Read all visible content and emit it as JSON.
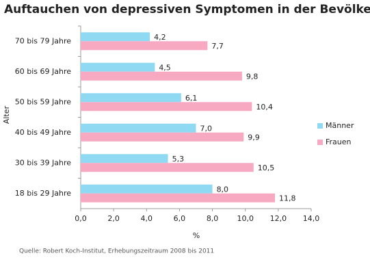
{
  "chart_data": {
    "type": "hbar",
    "title": "Auftauchen von depressiven Symptomen in der Bevölkerung",
    "categories": [
      "70 bis 79 Jahre",
      "60 bis 69 Jahre",
      "50 bis 59 Jahre",
      "40 bis 49 Jahre",
      "30 bis 39 Jahre",
      "18 bis 29 Jahre"
    ],
    "series": [
      {
        "name": "Männer",
        "color": "#8fd9f2",
        "values": [
          4.2,
          4.5,
          6.1,
          7.0,
          5.3,
          8.0
        ],
        "value_labels": [
          "4,2",
          "4,5",
          "6,1",
          "7,0",
          "5,3",
          "8,0"
        ]
      },
      {
        "name": "Frauen",
        "color": "#f7a9c2",
        "values": [
          7.7,
          9.8,
          10.4,
          9.9,
          10.5,
          11.8
        ],
        "value_labels": [
          "7,7",
          "9,8",
          "10,4",
          "9,9",
          "10,5",
          "11,8"
        ]
      }
    ],
    "xlim": [
      0,
      14
    ],
    "xticks": [
      {
        "value": 0,
        "label": "0,0"
      },
      {
        "value": 2,
        "label": "2,0"
      },
      {
        "value": 4,
        "label": "4,0"
      },
      {
        "value": 6,
        "label": "6,0"
      },
      {
        "value": 8,
        "label": "8,0"
      },
      {
        "value": 10,
        "label": "10,0"
      },
      {
        "value": 12,
        "label": "12,0"
      },
      {
        "value": 14,
        "label": "14,0"
      }
    ],
    "x_label": "%",
    "y_label": "Alter",
    "legend": "right",
    "source": "Quelle: Robert Koch-Institut, Erhebungszeitraum 2008 bis 2011"
  }
}
